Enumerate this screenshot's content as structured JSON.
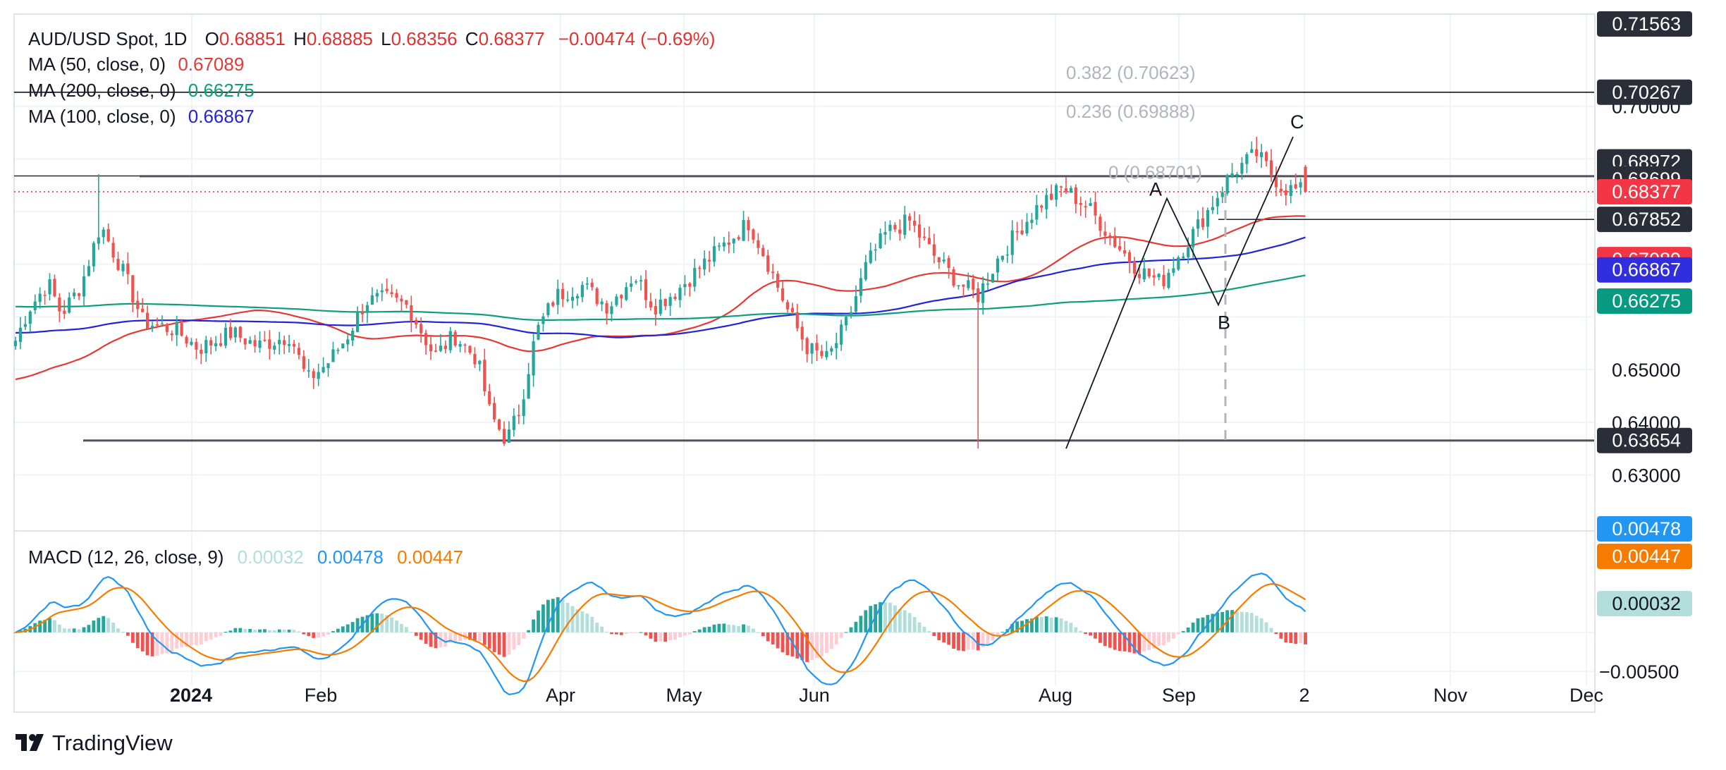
{
  "legend": {
    "symbol": "AUD/USD Spot, 1D",
    "open_label": "O",
    "open": "0.68851",
    "high_label": "H",
    "high": "0.68885",
    "low_label": "L",
    "low": "0.68356",
    "close_label": "C",
    "close": "0.68377",
    "change": "−0.00474 (−0.69%)",
    "ma50_label": "MA (50, close, 0)",
    "ma50_value": "0.67089",
    "ma200_label": "MA (200, close, 0)",
    "ma200_value": "0.66275",
    "ma100_label": "MA (100, close, 0)",
    "ma100_value": "0.66867",
    "macd_label": "MACD (12, 26, close, 9)",
    "macd_hist": "0.00032",
    "macd_line": "0.00478",
    "macd_signal": "0.00447"
  },
  "colors": {
    "up": "#26a69a",
    "down": "#ef5350",
    "ma50": "#e53935",
    "ma100": "#2424d6",
    "ma200": "#0f9e7b",
    "macd": "#2196f3",
    "signal": "#f57c00",
    "hist_pos_strong": "#26a69a",
    "hist_pos_weak": "#b2dfdb",
    "hist_neg_strong": "#ef5350",
    "hist_neg_weak": "#ffcdd2"
  },
  "watermark": "TradingView",
  "chart_data": {
    "type": "candlestick",
    "title": "AUD/USD Spot, 1D",
    "price_axis_ticks": [
      "0.70000",
      "0.65000",
      "0.64000",
      "0.63000"
    ],
    "macd_axis_ticks": [
      "−0.00500"
    ],
    "x_tick_labels": [
      "2024",
      "Feb",
      "Apr",
      "May",
      "Jun",
      "Aug",
      "Sep",
      "2",
      "Nov",
      "Dec"
    ],
    "ylim": [
      0.6195,
      0.7175
    ],
    "macd_ylim": [
      -0.0057,
      0.0128
    ],
    "price_badges": [
      {
        "value": "0.71563",
        "price": 0.71563,
        "color": "#2a2e39"
      },
      {
        "value": "0.70267",
        "price": 0.70267,
        "color": "#2a2e39"
      },
      {
        "value": "0.68972",
        "price": 0.68972,
        "color": "#2a2e39"
      },
      {
        "value": "0.68699",
        "price": 0.68699,
        "color": "#2a2e39"
      },
      {
        "value": "0.68377",
        "price": 0.68377,
        "color": "#f23645"
      },
      {
        "value": "0.67852",
        "price": 0.67852,
        "color": "#2a2e39"
      },
      {
        "value": "0.67089",
        "price": 0.67089,
        "color": "#f23645"
      },
      {
        "value": "0.66867",
        "price": 0.66867,
        "color": "#2f2fdf"
      },
      {
        "value": "0.66275",
        "price": 0.66275,
        "color": "#089981"
      },
      {
        "value": "0.63654",
        "price": 0.63654,
        "color": "#2a2e39"
      }
    ],
    "macd_badges": [
      {
        "value": "0.00478",
        "macd": 0.00478,
        "color": "#2196f3"
      },
      {
        "value": "0.00447",
        "macd": 0.00447,
        "color": "#f57c00"
      },
      {
        "value": "0.00032",
        "macd": 0.00032,
        "color": "#b2dfdb"
      }
    ],
    "fib_labels": [
      "0.382 (0.70623)",
      "0.236 (0.69888)",
      "0 (0.68701)"
    ],
    "wave_labels": [
      "A",
      "B",
      "C"
    ],
    "horizontal_lines": [
      0.70267,
      0.68972,
      0.68699,
      0.67852,
      0.63654
    ],
    "current_price": 0.68377,
    "key_points": {
      "dec_high": 0.6871,
      "apr_low": 0.6362,
      "aug_low": 0.635,
      "a_high": 0.6825,
      "b_low": 0.6623,
      "c_high": 0.6942
    }
  }
}
